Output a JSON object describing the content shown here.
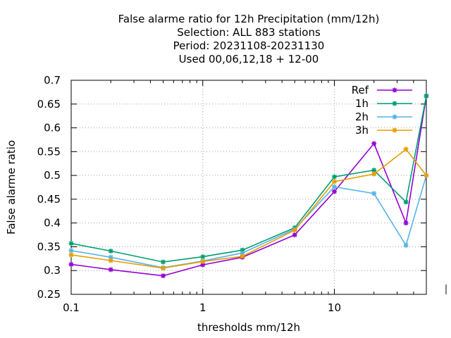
{
  "chart_data": {
    "type": "line",
    "title_lines": [
      "False alarme ratio  for 12h Precipitation (mm/12h)",
      "Selection: ALL    883 stations",
      "Period: 20231108-20231130",
      "Used  00,06,12,18 + 12-00"
    ],
    "xlabel": "thresholds mm/12h",
    "ylabel": "False alarme ratio",
    "x_scale": "log",
    "xlim": [
      0.1,
      50
    ],
    "ylim": [
      0.25,
      0.7
    ],
    "x_ticks": [
      0.1,
      1,
      10
    ],
    "x_tick_labels": [
      "0.1",
      "1",
      "10"
    ],
    "y_ticks": [
      0.25,
      0.3,
      0.35,
      0.4,
      0.45,
      0.5,
      0.55,
      0.6,
      0.65,
      0.7
    ],
    "y_tick_labels": [
      "0.25",
      "0.3",
      "0.35",
      "0.4",
      "0.45",
      "0.5",
      "0.55",
      "0.6",
      "0.65",
      "0.7"
    ],
    "grid": true,
    "legend_position": "top-right",
    "x": [
      0.1,
      0.2,
      0.5,
      1,
      2,
      5,
      10,
      20,
      35,
      50
    ],
    "series": [
      {
        "name": "Ref",
        "color": "#9400d3",
        "values": [
          0.313,
          0.302,
          0.289,
          0.312,
          0.328,
          0.375,
          0.466,
          0.567,
          0.4,
          0.667
        ]
      },
      {
        "name": "1h",
        "color": "#009e73",
        "values": [
          0.357,
          0.341,
          0.318,
          0.329,
          0.343,
          0.39,
          0.497,
          0.511,
          0.444,
          0.667
        ]
      },
      {
        "name": "2h",
        "color": "#56b4e9",
        "values": [
          0.342,
          0.328,
          0.306,
          0.32,
          0.337,
          0.387,
          0.476,
          0.462,
          0.353,
          0.5
        ]
      },
      {
        "name": "3h",
        "color": "#e69f00",
        "values": [
          0.333,
          0.321,
          0.305,
          0.319,
          0.33,
          0.385,
          0.487,
          0.503,
          0.555,
          0.5
        ]
      }
    ]
  }
}
